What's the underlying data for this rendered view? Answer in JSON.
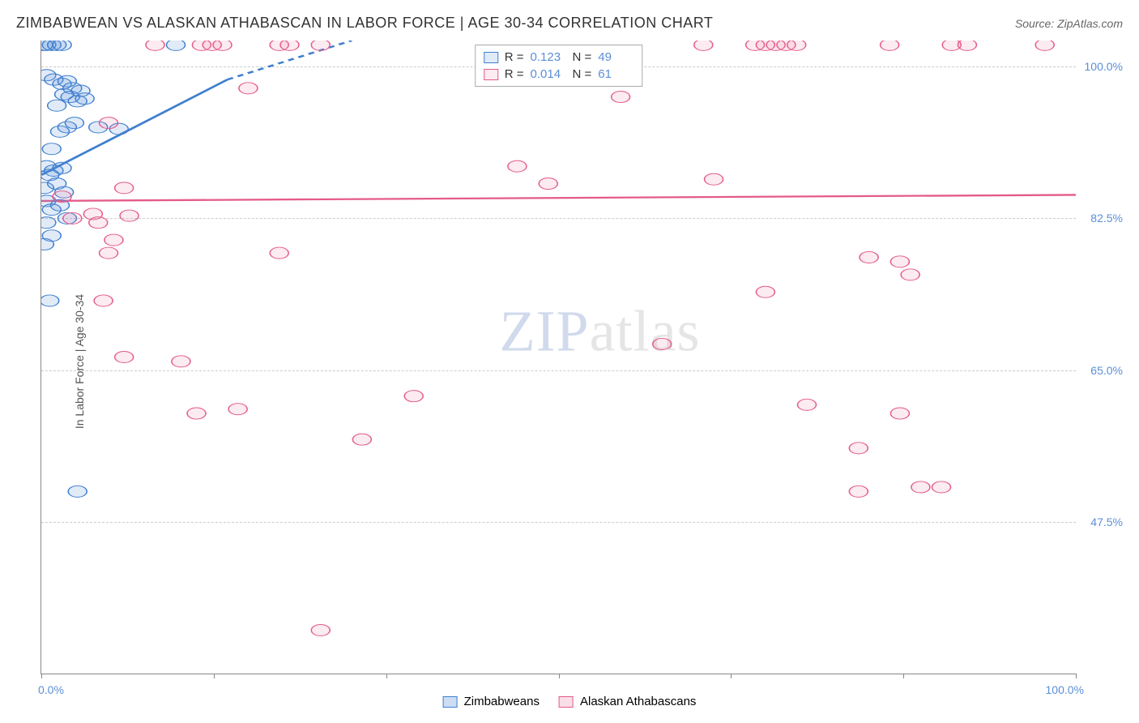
{
  "title": "ZIMBABWEAN VS ALASKAN ATHABASCAN IN LABOR FORCE | AGE 30-34 CORRELATION CHART",
  "source": "Source: ZipAtlas.com",
  "watermark_part1": "ZIP",
  "watermark_part2": "atlas",
  "y_axis_label": "In Labor Force | Age 30-34",
  "chart": {
    "type": "scatter",
    "background_color": "#ffffff",
    "grid_color": "#cccccc",
    "axis_color": "#888888",
    "tick_label_color": "#5b8fd6",
    "title_fontsize": 18,
    "label_fontsize": 14,
    "xlim": [
      0,
      100
    ],
    "ylim": [
      30,
      103
    ],
    "yticks": [
      47.5,
      65.0,
      82.5,
      100.0
    ],
    "ytick_labels": [
      "47.5%",
      "65.0%",
      "82.5%",
      "100.0%"
    ],
    "xtick_left": "0.0%",
    "xtick_right": "100.0%",
    "xticks": [
      0,
      16.67,
      33.33,
      50.0,
      66.67,
      83.33,
      100.0
    ],
    "marker_radius": 9,
    "marker_stroke_width": 1.2,
    "marker_fill_opacity": 0.18,
    "trend_line_width": 2.5,
    "series": [
      {
        "name": "Zimbabweans",
        "color": "#5b8fd6",
        "fill": "rgba(91,143,214,0.18)",
        "stroke": "#3f7fcf",
        "r_value": "0.123",
        "n_value": "49",
        "trend": {
          "x1": 0,
          "y1": 87.5,
          "x2_solid": 18,
          "y2_solid": 98.5,
          "x2_dash": 30,
          "y2_dash": 103
        },
        "points": [
          [
            0.2,
            102.5
          ],
          [
            0.5,
            102.5
          ],
          [
            1.0,
            102.5
          ],
          [
            1.5,
            102.5
          ],
          [
            2.0,
            102.5
          ],
          [
            13.0,
            102.5
          ],
          [
            0.5,
            99
          ],
          [
            1.2,
            98.5
          ],
          [
            2.0,
            98
          ],
          [
            2.5,
            98.3
          ],
          [
            3.0,
            97.5
          ],
          [
            3.8,
            97.2
          ],
          [
            2.2,
            96.8
          ],
          [
            1.5,
            95.5
          ],
          [
            2.8,
            96.5
          ],
          [
            3.5,
            96
          ],
          [
            4.2,
            96.3
          ],
          [
            1.8,
            92.5
          ],
          [
            2.5,
            93
          ],
          [
            3.2,
            93.5
          ],
          [
            5.5,
            93
          ],
          [
            7.5,
            92.8
          ],
          [
            1.0,
            90.5
          ],
          [
            0.5,
            88.5
          ],
          [
            1.2,
            88
          ],
          [
            2.0,
            88.3
          ],
          [
            0.8,
            87.5
          ],
          [
            0.3,
            86
          ],
          [
            1.5,
            86.5
          ],
          [
            2.2,
            85.5
          ],
          [
            0.5,
            84.5
          ],
          [
            1.8,
            84
          ],
          [
            1.0,
            83.5
          ],
          [
            2.5,
            82.5
          ],
          [
            0.5,
            82
          ],
          [
            1.0,
            80.5
          ],
          [
            0.3,
            79.5
          ],
          [
            0.8,
            73
          ],
          [
            3.5,
            51
          ]
        ]
      },
      {
        "name": "Alaskan Athabascans",
        "color": "#e87ca3",
        "fill": "rgba(232,124,163,0.15)",
        "stroke": "#e45b8a",
        "r_value": "0.014",
        "n_value": "61",
        "trend": {
          "x1": 0,
          "y1": 84.5,
          "x2_solid": 100,
          "y2_solid": 85.2
        },
        "points": [
          [
            11,
            102.5
          ],
          [
            15.5,
            102.5
          ],
          [
            16.5,
            102.5
          ],
          [
            17.5,
            102.5
          ],
          [
            23,
            102.5
          ],
          [
            24,
            102.5
          ],
          [
            27,
            102.5
          ],
          [
            64,
            102.5
          ],
          [
            69,
            102.5
          ],
          [
            70,
            102.5
          ],
          [
            71,
            102.5
          ],
          [
            72,
            102.5
          ],
          [
            73,
            102.5
          ],
          [
            82,
            102.5
          ],
          [
            88,
            102.5
          ],
          [
            89.5,
            102.5
          ],
          [
            97,
            102.5
          ],
          [
            20,
            97.5
          ],
          [
            56,
            96.5
          ],
          [
            6.5,
            93.5
          ],
          [
            46,
            88.5
          ],
          [
            49,
            86.5
          ],
          [
            65,
            87
          ],
          [
            2,
            85
          ],
          [
            3,
            82.5
          ],
          [
            5,
            83
          ],
          [
            5.5,
            82
          ],
          [
            8.5,
            82.8
          ],
          [
            8,
            86
          ],
          [
            7,
            80
          ],
          [
            6.5,
            78.5
          ],
          [
            80,
            78
          ],
          [
            70,
            74
          ],
          [
            83,
            77.5
          ],
          [
            23,
            78.5
          ],
          [
            84,
            76
          ],
          [
            6,
            73
          ],
          [
            8,
            66.5
          ],
          [
            13.5,
            66
          ],
          [
            74,
            61
          ],
          [
            83,
            60
          ],
          [
            60,
            68
          ],
          [
            19,
            60.5
          ],
          [
            36,
            62
          ],
          [
            15,
            60
          ],
          [
            31,
            57
          ],
          [
            79,
            56
          ],
          [
            79,
            51
          ],
          [
            85,
            51.5
          ],
          [
            87,
            51.5
          ],
          [
            27,
            35
          ]
        ]
      }
    ]
  },
  "legend_bottom": [
    {
      "label": "Zimbabweans",
      "fill": "rgba(91,143,214,0.3)",
      "stroke": "#3f7fcf"
    },
    {
      "label": "Alaskan Athabascans",
      "fill": "rgba(232,124,163,0.25)",
      "stroke": "#e45b8a"
    }
  ]
}
